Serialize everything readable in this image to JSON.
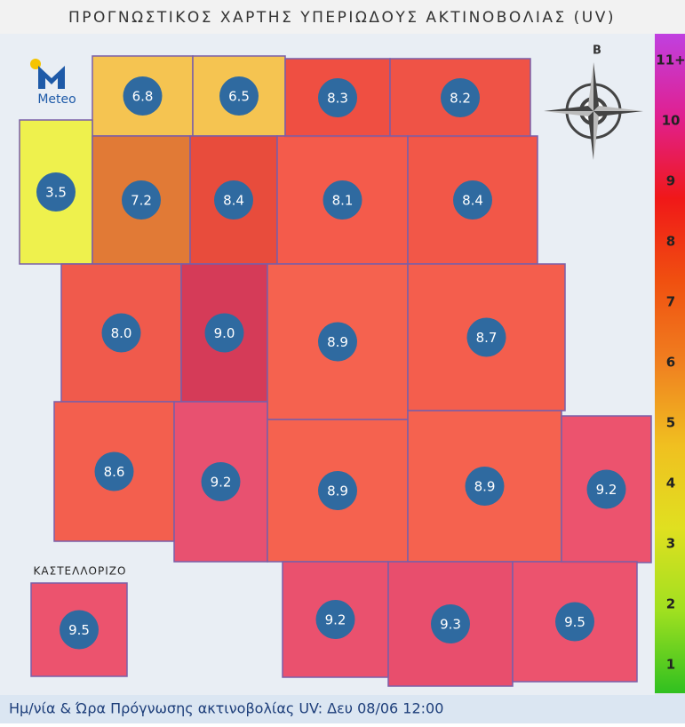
{
  "title": "ΠΡΟΓΝΩΣΤΙΚΟΣ ΧΑΡΤΗΣ ΥΠΕΡΙΩΔΟΥΣ ΑΚΤΙΝΟΒΟΛΙΑΣ (UV)",
  "logo": "Meteo",
  "compass_north": "B",
  "inset_label": "ΚΑΣΤΕΛΛΟΡΙΖΟ",
  "footer": "Ημ/νία & Ώρα Πρόγνωσης ακτινοβολίας UV:  Δευ 08/06 12:00",
  "tiles": [
    {
      "value": "6.8",
      "color": "#f6c148"
    },
    {
      "value": "6.5",
      "color": "#f6c148"
    },
    {
      "value": "8.3",
      "color": "#ef4638"
    },
    {
      "value": "8.2",
      "color": "#ef4a3c"
    },
    {
      "value": "3.5",
      "color": "#eef043"
    },
    {
      "value": "7.2",
      "color": "#e0732b"
    },
    {
      "value": "8.4",
      "color": "#e84232"
    },
    {
      "value": "8.1",
      "color": "#f45241"
    },
    {
      "value": "8.4",
      "color": "#f24e3e"
    },
    {
      "value": "8.0",
      "color": "#f05142"
    },
    {
      "value": "9.0",
      "color": "#d4304f"
    },
    {
      "value": "8.9",
      "color": "#f55a46"
    },
    {
      "value": "8.7",
      "color": "#f45543"
    },
    {
      "value": "8.6",
      "color": "#f35644"
    },
    {
      "value": "9.2",
      "color": "#e84868"
    },
    {
      "value": "8.9",
      "color": "#f55a46"
    },
    {
      "value": "8.9",
      "color": "#f55a46"
    },
    {
      "value": "9.2",
      "color": "#ec4a66"
    },
    {
      "value": "9.2",
      "color": "#ea4866"
    },
    {
      "value": "9.3",
      "color": "#e84565"
    },
    {
      "value": "9.5",
      "color": "#ec4a66"
    },
    {
      "value": "9.5",
      "color": "#ec4a66"
    }
  ],
  "scale_labels": [
    "11+",
    "10",
    "9",
    "8",
    "7",
    "6",
    "5",
    "4",
    "3",
    "2",
    "1"
  ],
  "scale_colors": [
    "#c040e0",
    "#e02090",
    "#f01818",
    "#f05010",
    "#f08020",
    "#f0c020",
    "#e0e020",
    "#a0e020",
    "#30c020"
  ]
}
